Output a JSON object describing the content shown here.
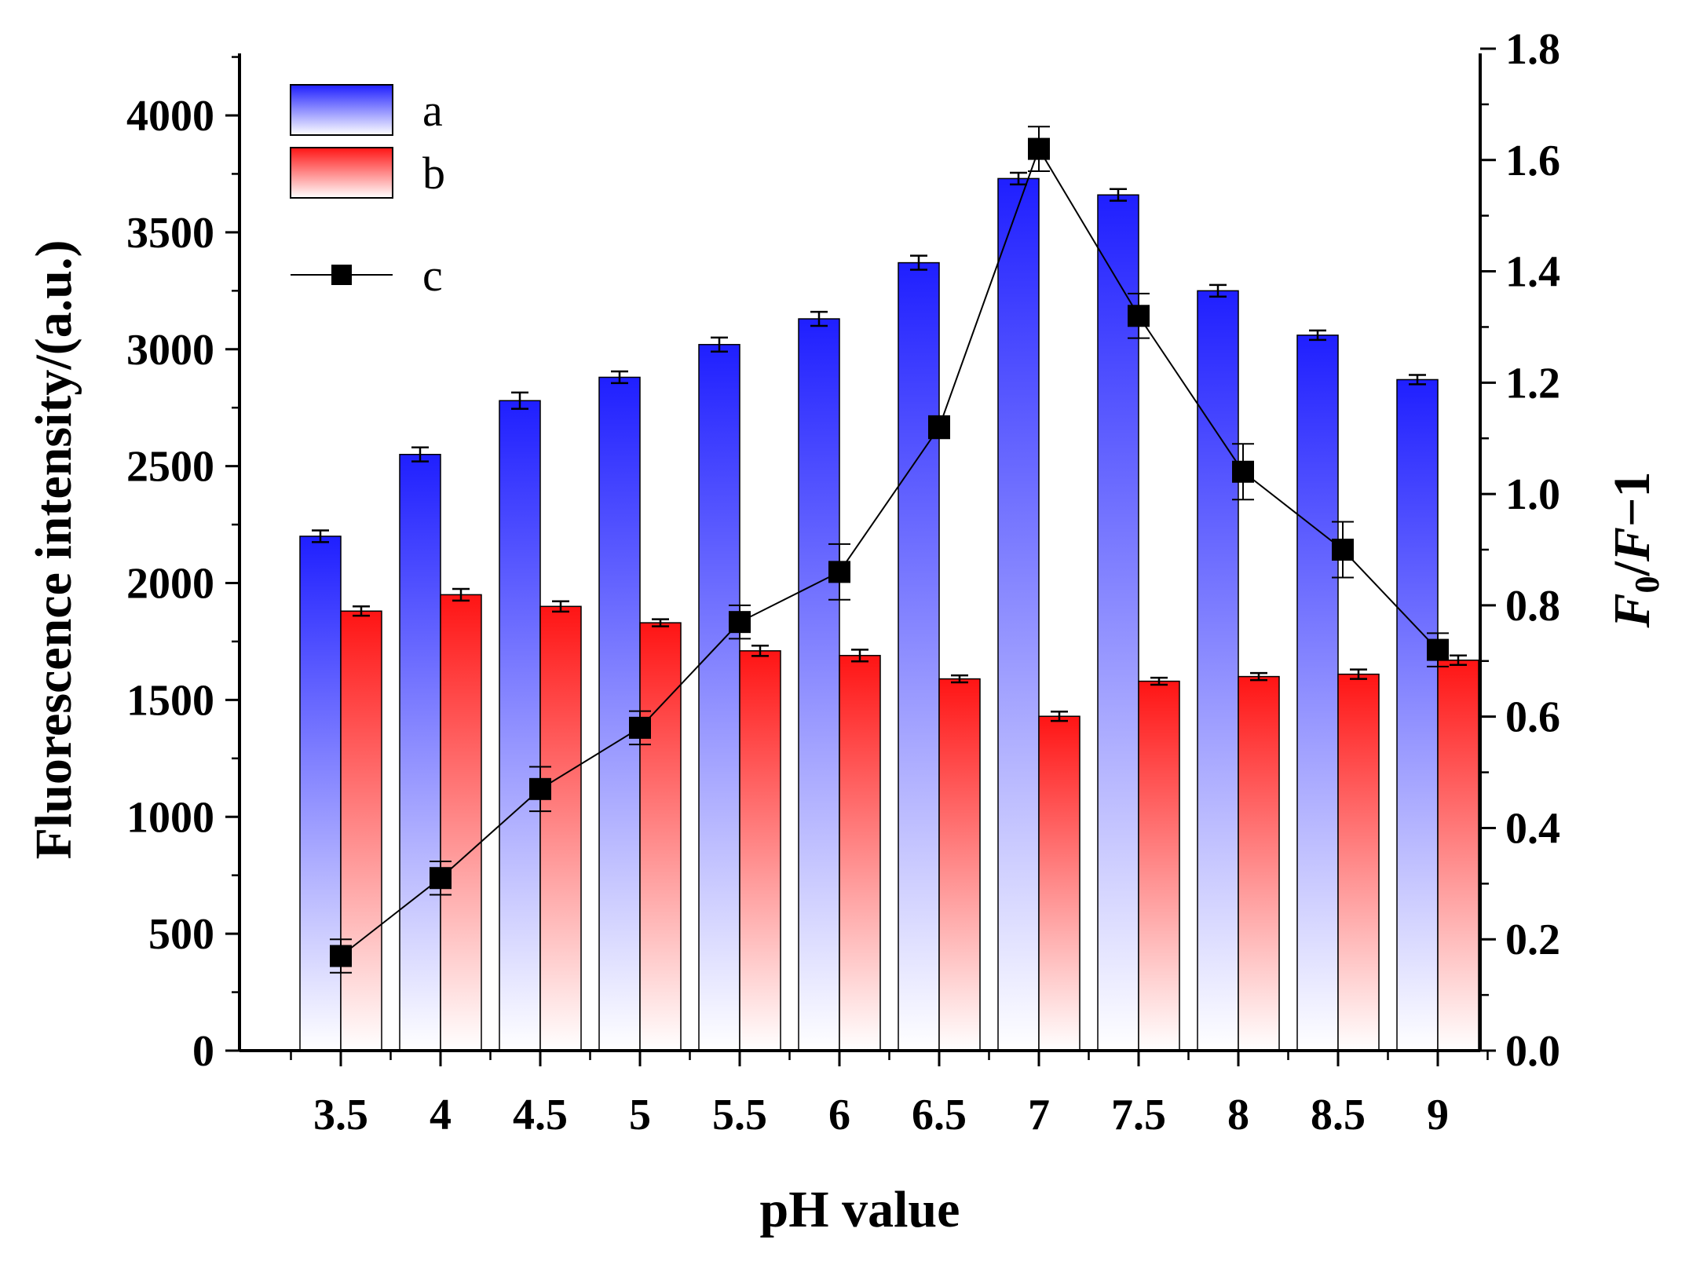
{
  "chart_data": {
    "type": "bar",
    "x": [
      3.5,
      4,
      4.5,
      5,
      5.5,
      6,
      6.5,
      7,
      7.5,
      8,
      8.5,
      9
    ],
    "categories": [
      "3.5",
      "4",
      "4.5",
      "5",
      "5.5",
      "6",
      "6.5",
      "7",
      "7.5",
      "8",
      "8.5",
      "9"
    ],
    "xlabel": "pH value",
    "ylabel": "Fluorescence intensity/(a.u.)",
    "ylabel_right_parts": [
      "F",
      "0",
      "/",
      "F",
      "−1"
    ],
    "ylim": [
      0,
      4250
    ],
    "ylim_right": [
      0,
      1.8
    ],
    "y_ticks": [
      "0",
      "500",
      "1000",
      "1500",
      "2000",
      "2500",
      "3000",
      "3500",
      "4000"
    ],
    "y_ticks_right": [
      "0.0",
      "0.2",
      "0.4",
      "0.6",
      "0.8",
      "1.0",
      "1.2",
      "1.4",
      "1.6",
      "1.8"
    ],
    "series": [
      {
        "name": "a",
        "kind": "bar",
        "axis": "left",
        "color": "#1a1aff",
        "values": [
          2200,
          2550,
          2780,
          2880,
          3020,
          3130,
          3370,
          3730,
          3660,
          3250,
          3060,
          2870
        ],
        "errors": [
          25,
          30,
          35,
          25,
          30,
          30,
          30,
          25,
          25,
          25,
          20,
          20
        ]
      },
      {
        "name": "b",
        "kind": "bar",
        "axis": "left",
        "color": "#ff1a1a",
        "values": [
          1880,
          1950,
          1900,
          1830,
          1710,
          1690,
          1590,
          1430,
          1580,
          1600,
          1610,
          1670
        ],
        "errors": [
          20,
          25,
          22,
          15,
          22,
          25,
          15,
          20,
          15,
          15,
          20,
          20
        ]
      },
      {
        "name": "c",
        "kind": "line",
        "axis": "right",
        "color": "#000000",
        "values": [
          0.17,
          0.31,
          0.47,
          0.58,
          0.77,
          0.86,
          1.12,
          1.62,
          1.32,
          1.04,
          0.9,
          0.72
        ],
        "errors": [
          0.03,
          0.03,
          0.04,
          0.03,
          0.03,
          0.05,
          0.02,
          0.04,
          0.04,
          0.05,
          0.05,
          0.03
        ]
      }
    ],
    "legend": [
      "a",
      "b",
      "c"
    ],
    "legend_position": "top-left"
  }
}
